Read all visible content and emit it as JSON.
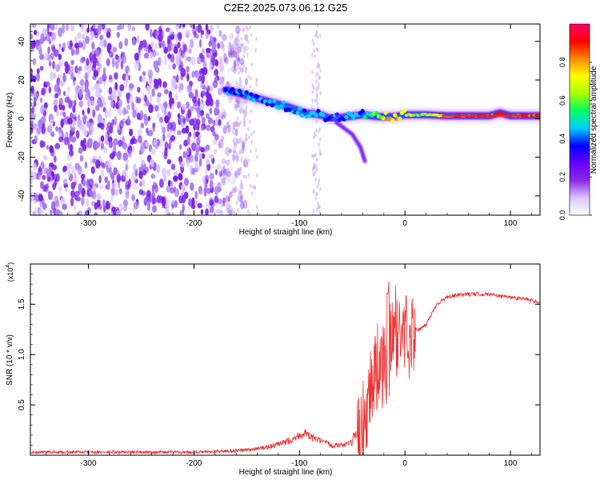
{
  "figure_title": "C2E2.2025.073.06.12.G25",
  "chart_data": [
    {
      "type": "heatmap",
      "title": "C2E2.2025.073.06.12.G25",
      "xlabel": "Height of straight line (km)",
      "ylabel": "Frequency (Hz)",
      "xlim": [
        -355,
        128
      ],
      "ylim": [
        -50,
        49
      ],
      "x_ticks": [
        -300,
        -200,
        -100,
        0,
        100
      ],
      "x_tick_labels": [
        "-300",
        "-200",
        "-100",
        "0",
        "100"
      ],
      "y_ticks": [
        -40,
        -20,
        0,
        20,
        40
      ],
      "y_tick_labels": [
        "-40",
        "-20",
        "0",
        "20",
        "40"
      ],
      "colorbar": {
        "label": "Normalized spectral amplitude",
        "range": [
          0,
          1
        ],
        "ticks": [
          0.0,
          0.2,
          0.4,
          0.6,
          0.8
        ],
        "tick_labels": [
          "0.0",
          "0.2",
          "0.4",
          "0.6",
          "0.8"
        ],
        "colors": [
          "#ffffff",
          "#d9c6ff",
          "#8a2be2",
          "#6600ff",
          "#0000ff",
          "#00ccff",
          "#00ff66",
          "#aaff00",
          "#ffff00",
          "#ff8800",
          "#ff0000",
          "#ff0066"
        ]
      },
      "noise_region_x": [
        -355,
        -175
      ],
      "signal_ridge": [
        {
          "x": -170,
          "y": 15,
          "amp": 0.35
        },
        {
          "x": -150,
          "y": 12,
          "amp": 0.4
        },
        {
          "x": -130,
          "y": 9,
          "amp": 0.4
        },
        {
          "x": -110,
          "y": 6,
          "amp": 0.45
        },
        {
          "x": -95,
          "y": 3,
          "amp": 0.45
        },
        {
          "x": -80,
          "y": 2,
          "amp": 0.4
        },
        {
          "x": -70,
          "y": 0,
          "amp": 0.35
        },
        {
          "x": -55,
          "y": 1,
          "amp": 0.4
        },
        {
          "x": -40,
          "y": 2,
          "amp": 0.45
        },
        {
          "x": -25,
          "y": 1,
          "amp": 0.6
        },
        {
          "x": -10,
          "y": 1,
          "amp": 0.8
        },
        {
          "x": 0,
          "y": 2,
          "amp": 0.7
        },
        {
          "x": 20,
          "y": 2,
          "amp": 0.6
        },
        {
          "x": 40,
          "y": 1.5,
          "amp": 0.85
        },
        {
          "x": 60,
          "y": 1.5,
          "amp": 0.9
        },
        {
          "x": 80,
          "y": 1.5,
          "amp": 0.9
        },
        {
          "x": 90,
          "y": 3,
          "amp": 0.9
        },
        {
          "x": 100,
          "y": 1.5,
          "amp": 0.85
        },
        {
          "x": 128,
          "y": 1.5,
          "amp": 0.85
        }
      ],
      "side_branch": [
        {
          "x": -65,
          "y": -2
        },
        {
          "x": -50,
          "y": -8
        },
        {
          "x": -42,
          "y": -15
        },
        {
          "x": -38,
          "y": -22
        }
      ]
    },
    {
      "type": "line",
      "xlabel": "Height of straight line (km)",
      "ylabel": "SNR (10 * v/v)",
      "y_multiplier": "(x10",
      "y_multiplier_exp": "4",
      "y_multiplier_close": ")",
      "xlim": [
        -355,
        128
      ],
      "ylim": [
        0,
        1.9
      ],
      "x_ticks": [
        -300,
        -200,
        -100,
        0,
        100
      ],
      "x_tick_labels": [
        "-300",
        "-200",
        "-100",
        "0",
        "100"
      ],
      "y_ticks": [
        0.5,
        1.0,
        1.5
      ],
      "y_tick_labels": [
        "0.5",
        "1.0",
        "1.5"
      ],
      "color": "#ee3333",
      "series": [
        {
          "x": [
            -355,
            -300,
            -250,
            -200,
            -170,
            -150,
            -130,
            -115,
            -105,
            -100,
            -95,
            -90,
            -80,
            -70,
            -60,
            -50,
            -45,
            -40,
            -35,
            -30,
            -25,
            -20,
            -16,
            -14,
            -10,
            -5,
            0,
            5,
            10,
            15,
            20,
            25,
            30,
            40,
            50,
            60,
            70,
            80,
            90,
            100,
            110,
            120,
            128
          ],
          "y": [
            0.03,
            0.03,
            0.03,
            0.03,
            0.04,
            0.05,
            0.08,
            0.12,
            0.17,
            0.2,
            0.22,
            0.18,
            0.14,
            0.1,
            0.1,
            0.12,
            0.15,
            0.3,
            0.55,
            0.8,
            0.9,
            0.85,
            0.8,
            1.1,
            1.25,
            1.2,
            1.22,
            1.2,
            1.25,
            1.25,
            1.3,
            1.4,
            1.5,
            1.57,
            1.59,
            1.6,
            1.6,
            1.6,
            1.58,
            1.57,
            1.56,
            1.54,
            1.52
          ]
        }
      ]
    }
  ]
}
